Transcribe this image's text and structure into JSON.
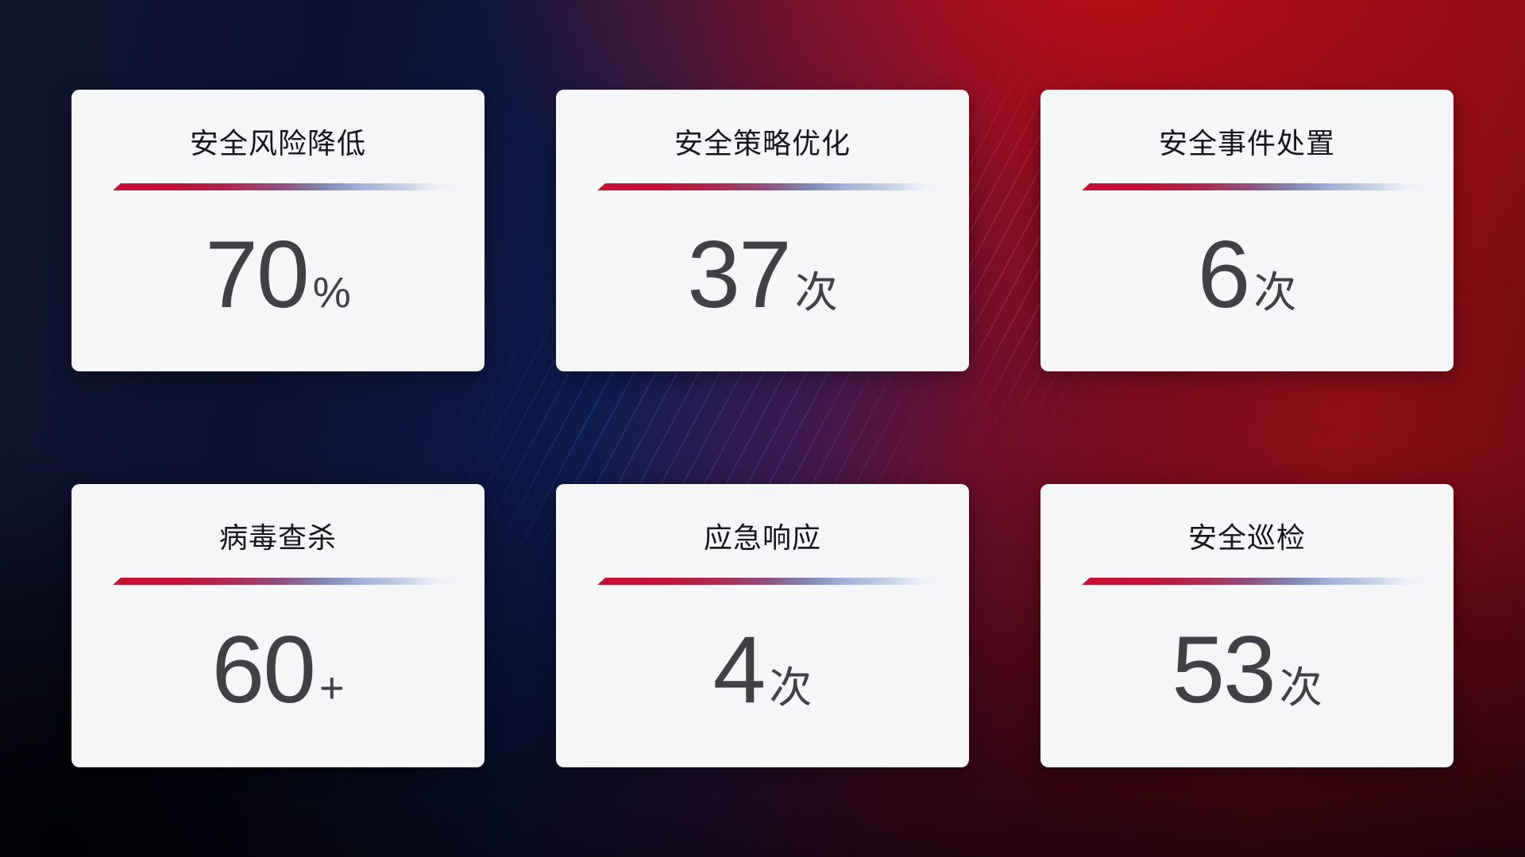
{
  "cards": [
    {
      "title": "安全风险降低",
      "value": "70",
      "suffix": "%"
    },
    {
      "title": "安全策略优化",
      "value": "37",
      "suffix": "次"
    },
    {
      "title": "安全事件处置",
      "value": "6",
      "suffix": "次"
    },
    {
      "title": "病毒查杀",
      "value": "60",
      "suffix": "+"
    },
    {
      "title": "应急响应",
      "value": "4",
      "suffix": "次"
    },
    {
      "title": "安全巡检",
      "value": "53",
      "suffix": "次"
    }
  ],
  "colors": {
    "card_bg": "#f5f6f8",
    "title_color": "#15161a",
    "value_color": "#3f4146",
    "divider_red": "#c41334",
    "divider_blue": "#c3cde4"
  }
}
